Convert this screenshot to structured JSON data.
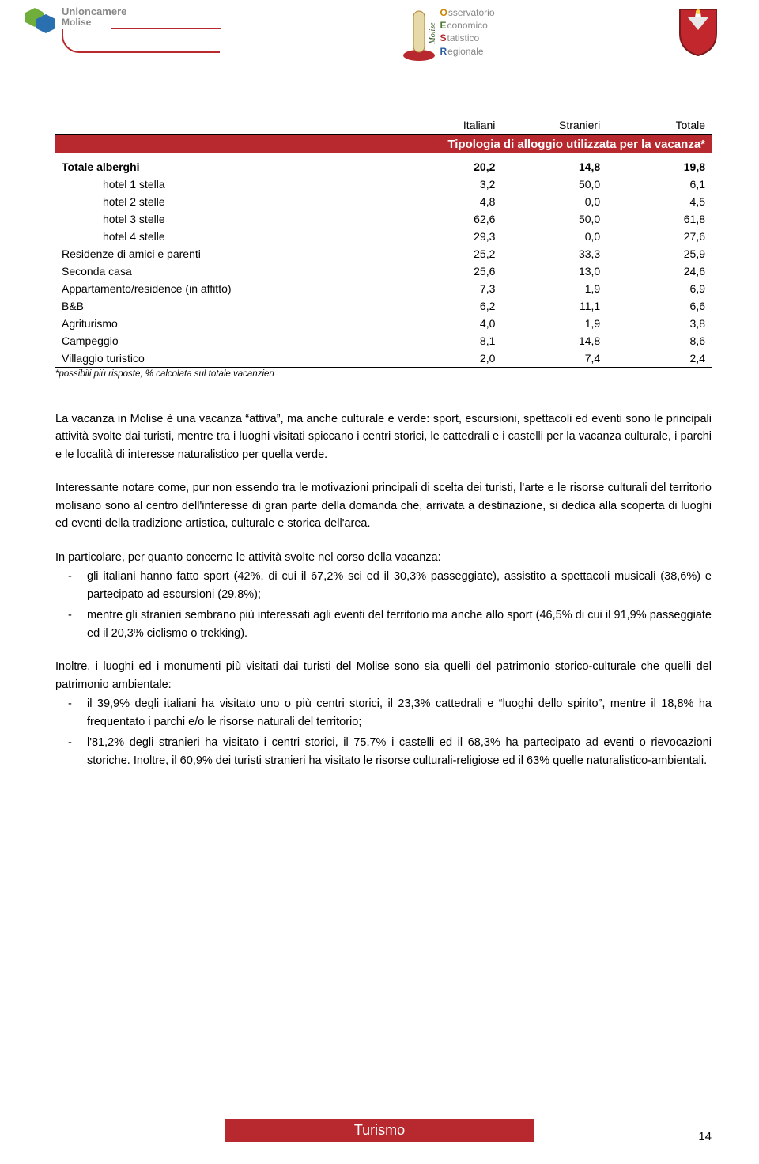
{
  "header": {
    "unioncamere_label": "Unioncamere",
    "unioncamere_sub": "Molise",
    "oesr": {
      "o": "Osservatorio",
      "e": "Economico",
      "s": "Statistico",
      "r": "Regionale"
    },
    "molise_label": "Molise"
  },
  "table": {
    "title": "Tipologia di alloggio utilizzata per la vacanza*",
    "title_bg": "#b8292f",
    "title_color": "#ffffff",
    "columns": [
      "",
      "Italiani",
      "Stranieri",
      "Totale"
    ],
    "rows": [
      {
        "label": "Totale alberghi",
        "vals": [
          "20,2",
          "14,8",
          "19,8"
        ],
        "bold": true,
        "indent": false
      },
      {
        "label": "hotel 1 stella",
        "vals": [
          "3,2",
          "50,0",
          "6,1"
        ],
        "bold": false,
        "indent": true
      },
      {
        "label": "hotel 2 stelle",
        "vals": [
          "4,8",
          "0,0",
          "4,5"
        ],
        "bold": false,
        "indent": true
      },
      {
        "label": "hotel 3 stelle",
        "vals": [
          "62,6",
          "50,0",
          "61,8"
        ],
        "bold": false,
        "indent": true
      },
      {
        "label": "hotel 4 stelle",
        "vals": [
          "29,3",
          "0,0",
          "27,6"
        ],
        "bold": false,
        "indent": true
      },
      {
        "label": "Residenze di amici e parenti",
        "vals": [
          "25,2",
          "33,3",
          "25,9"
        ],
        "bold": false,
        "indent": false
      },
      {
        "label": "Seconda casa",
        "vals": [
          "25,6",
          "13,0",
          "24,6"
        ],
        "bold": false,
        "indent": false
      },
      {
        "label": "Appartamento/residence (in affitto)",
        "vals": [
          "7,3",
          "1,9",
          "6,9"
        ],
        "bold": false,
        "indent": false
      },
      {
        "label": "B&B",
        "vals": [
          "6,2",
          "11,1",
          "6,6"
        ],
        "bold": false,
        "indent": false
      },
      {
        "label": "Agriturismo",
        "vals": [
          "4,0",
          "1,9",
          "3,8"
        ],
        "bold": false,
        "indent": false
      },
      {
        "label": "Campeggio",
        "vals": [
          "8,1",
          "14,8",
          "8,6"
        ],
        "bold": false,
        "indent": false
      },
      {
        "label": "Villaggio turistico",
        "vals": [
          "2,0",
          "7,4",
          "2,4"
        ],
        "bold": false,
        "indent": false
      }
    ],
    "footnote": "*possibili più risposte, % calcolata sul totale vacanzieri",
    "col_widths": [
      "52%",
      "16%",
      "16%",
      "16%"
    ]
  },
  "body": {
    "p1": "La vacanza in Molise è una vacanza “attiva”, ma anche culturale e verde: sport, escursioni, spettacoli ed eventi sono le principali attività svolte dai turisti, mentre tra i luoghi visitati spiccano i centri storici, le cattedrali e i castelli per la vacanza culturale, i parchi e le località di interesse naturalistico per quella verde.",
    "p2": "Interessante notare come, pur non essendo tra le motivazioni principali di scelta dei turisti, l'arte e le risorse culturali del territorio molisano sono al centro dell'interesse di gran parte della domanda che, arrivata a destinazione, si dedica alla scoperta di luoghi ed eventi della tradizione artistica, culturale e storica dell'area.",
    "p3_intro": "In particolare, per quanto concerne le attività svolte nel corso della vacanza:",
    "p3_items": [
      "gli italiani hanno fatto sport (42%, di cui il 67,2% sci ed il 30,3% passeggiate), assistito a spettacoli musicali (38,6%) e partecipato ad escursioni (29,8%);",
      "mentre gli stranieri sembrano più interessati agli eventi del territorio ma anche allo sport (46,5% di cui il 91,9% passeggiate ed il 20,3% ciclismo o trekking)."
    ],
    "p4_intro": "Inoltre, i luoghi ed i monumenti più visitati dai turisti del Molise sono sia quelli del patrimonio storico-culturale che quelli del patrimonio ambientale:",
    "p4_items": [
      "il 39,9% degli italiani ha visitato uno o più centri storici, il 23,3% cattedrali e “luoghi dello spirito”, mentre il 18,8% ha frequentato i parchi e/o le risorse naturali del territorio;",
      "l'81,2% degli stranieri ha visitato i centri storici, il 75,7% i castelli ed il 68,3% ha partecipato ad eventi o rievocazioni storiche. Inoltre, il 60,9% dei turisti stranieri ha visitato le risorse culturali-religiose ed il 63% quelle naturalistico-ambientali."
    ]
  },
  "footer": {
    "label": "Turismo",
    "page": "14",
    "bar_bg": "#b8292f",
    "bar_color": "#ffffff"
  },
  "colors": {
    "brand_red": "#b8292f",
    "text": "#000000",
    "grey": "#888888"
  }
}
